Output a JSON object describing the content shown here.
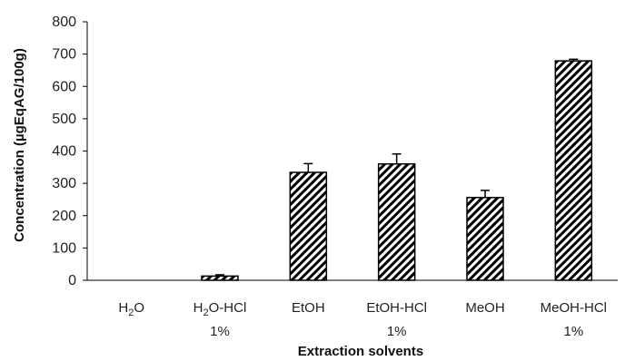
{
  "chart_data": {
    "type": "bar",
    "title": "",
    "xlabel": "Extraction solvents",
    "ylabel": "Concentration (µgEqAG/100g)",
    "ylim": [
      0,
      800
    ],
    "yticks": [
      0,
      100,
      200,
      300,
      400,
      500,
      600,
      700,
      800
    ],
    "grid": false,
    "legend": "none",
    "categories": [
      {
        "main": "H",
        "sub": "2",
        "rest": "O",
        "line2": ""
      },
      {
        "main": "H",
        "sub": "2",
        "rest": "O-HCl",
        "line2": "1%"
      },
      {
        "main": "EtOH",
        "sub": "",
        "rest": "",
        "line2": ""
      },
      {
        "main": "EtOH-HCl",
        "sub": "",
        "rest": "",
        "line2": "1%"
      },
      {
        "main": "MeOH",
        "sub": "",
        "rest": "",
        "line2": ""
      },
      {
        "main": "MeOH-HCl",
        "sub": "",
        "rest": "",
        "line2": "1%"
      }
    ],
    "values": [
      0,
      13,
      334,
      360,
      256,
      679
    ],
    "errors": [
      0,
      4,
      27,
      31,
      22,
      5
    ],
    "bar_fill": "hatched-diagonal",
    "colors": {
      "bar_stroke": "#000000",
      "hatch": "#000000",
      "axis": "#000000"
    }
  }
}
